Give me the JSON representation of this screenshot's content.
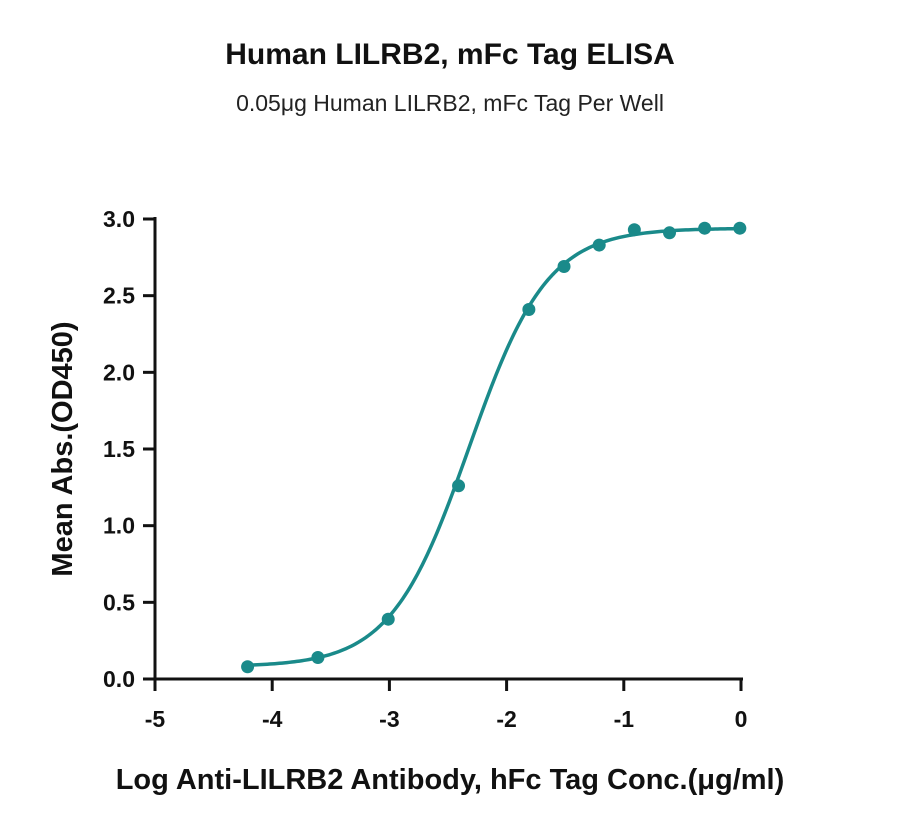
{
  "chart_data": {
    "type": "scatter",
    "title": "Human LILRB2, mFc Tag ELISA",
    "subtitle": "0.05μg Human LILRB2, mFc Tag Per Well",
    "xlabel": "Log Anti-LILRB2 Antibody, hFc Tag Conc.(μg/ml)",
    "ylabel": "Mean Abs.(OD450)",
    "xlim": [
      -5,
      0
    ],
    "ylim": [
      0,
      3
    ],
    "xticks": [
      -5,
      -4,
      -3,
      -2,
      -1,
      0
    ],
    "yticks": [
      0,
      0.5,
      1,
      1.5,
      2,
      2.5,
      3
    ],
    "xtick_labels": [
      "-5",
      "-4",
      "-3",
      "-2",
      "-1",
      "0"
    ],
    "ytick_labels": [
      "0.0",
      "0.5",
      "1.0",
      "1.5",
      "2.0",
      "2.5",
      "3.0"
    ],
    "grid": false,
    "color": "#1a8a8a",
    "points": [
      {
        "x": -4.21,
        "y": 0.08
      },
      {
        "x": -3.61,
        "y": 0.14
      },
      {
        "x": -3.01,
        "y": 0.39
      },
      {
        "x": -2.41,
        "y": 1.26
      },
      {
        "x": -1.81,
        "y": 2.41
      },
      {
        "x": -1.51,
        "y": 2.69
      },
      {
        "x": -1.21,
        "y": 2.83
      },
      {
        "x": -0.91,
        "y": 2.93
      },
      {
        "x": -0.61,
        "y": 2.91
      },
      {
        "x": -0.31,
        "y": 2.94
      },
      {
        "x": -0.01,
        "y": 2.94
      }
    ],
    "fit": {
      "model": "4PL",
      "bottom": 0.08,
      "top": 2.94,
      "logEC50": -2.32,
      "hill": 1.3
    }
  }
}
